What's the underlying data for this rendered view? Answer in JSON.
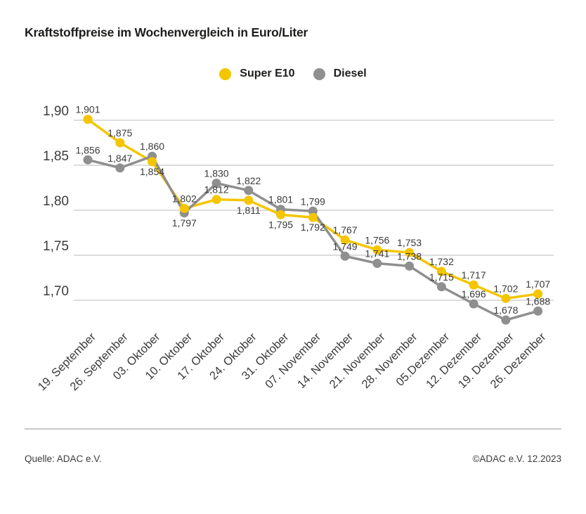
{
  "title": "Kraftstoffpreise im Wochenvergleich in Euro/Liter",
  "legend": [
    {
      "label": "Super E10",
      "color": "#f5c500"
    },
    {
      "label": "Diesel",
      "color": "#8f8f8f"
    }
  ],
  "footer": {
    "source": "Quelle: ADAC e.V.",
    "copyright": "©ADAC e.V. 12.2023"
  },
  "chart_data": {
    "type": "line",
    "title": "Kraftstoffpreise im Wochenvergleich in Euro/Liter",
    "xlabel": "",
    "ylabel": "Euro/Liter",
    "grid": true,
    "legend_position": "top-center",
    "ylim": [
      1.66,
      1.92
    ],
    "grid_color": "#c6c6c6",
    "axis_text_color": "#3c3c3c",
    "label_color": "#3a3a3a",
    "y_ticks": [
      "1,90",
      "1,85",
      "1,80",
      "1,75",
      "1,70"
    ],
    "y_tick_values": [
      1.9,
      1.85,
      1.8,
      1.75,
      1.7
    ],
    "categories": [
      "19. September",
      "26. September",
      "03. Oktober",
      "10. Oktober",
      "17. Oktober",
      "24. Oktober",
      "31. Oktober",
      "07. November",
      "14. November",
      "21. November",
      "28. November",
      "05.Dezember",
      "12. Dezember",
      "19. Dezember",
      "26. Dezember"
    ],
    "series": [
      {
        "name": "Super E10",
        "color": "#f5c500",
        "values": [
          1.901,
          1.875,
          1.854,
          1.802,
          1.812,
          1.811,
          1.795,
          1.792,
          1.767,
          1.756,
          1.753,
          1.732,
          1.717,
          1.702,
          1.707
        ],
        "labels": [
          "1,901",
          "1,875",
          "1,854",
          "1,802",
          "1,812",
          "1,811",
          "1,795",
          "1,792",
          "1,767",
          "1,756",
          "1,753",
          "1,732",
          "1,717",
          "1,702",
          "1,707"
        ],
        "label_side": [
          "above",
          "above",
          "below",
          "above",
          "above",
          "below",
          "below",
          "below",
          "above",
          "above",
          "above",
          "above",
          "above",
          "above",
          "above"
        ]
      },
      {
        "name": "Diesel",
        "color": "#8f8f8f",
        "values": [
          1.856,
          1.847,
          1.86,
          1.797,
          1.83,
          1.822,
          1.801,
          1.799,
          1.749,
          1.741,
          1.738,
          1.715,
          1.696,
          1.678,
          1.688
        ],
        "labels": [
          "1,856",
          "1,847",
          "1,860",
          "1,797",
          "1,830",
          "1,822",
          "1,801",
          "1,799",
          "1,749",
          "1,741",
          "1,738",
          "1,715",
          "1,696",
          "1,678",
          "1,688"
        ],
        "label_side": [
          "above",
          "above",
          "above",
          "below",
          "above",
          "above",
          "above",
          "above",
          "above",
          "above",
          "above",
          "above",
          "above",
          "above",
          "above"
        ]
      }
    ]
  }
}
